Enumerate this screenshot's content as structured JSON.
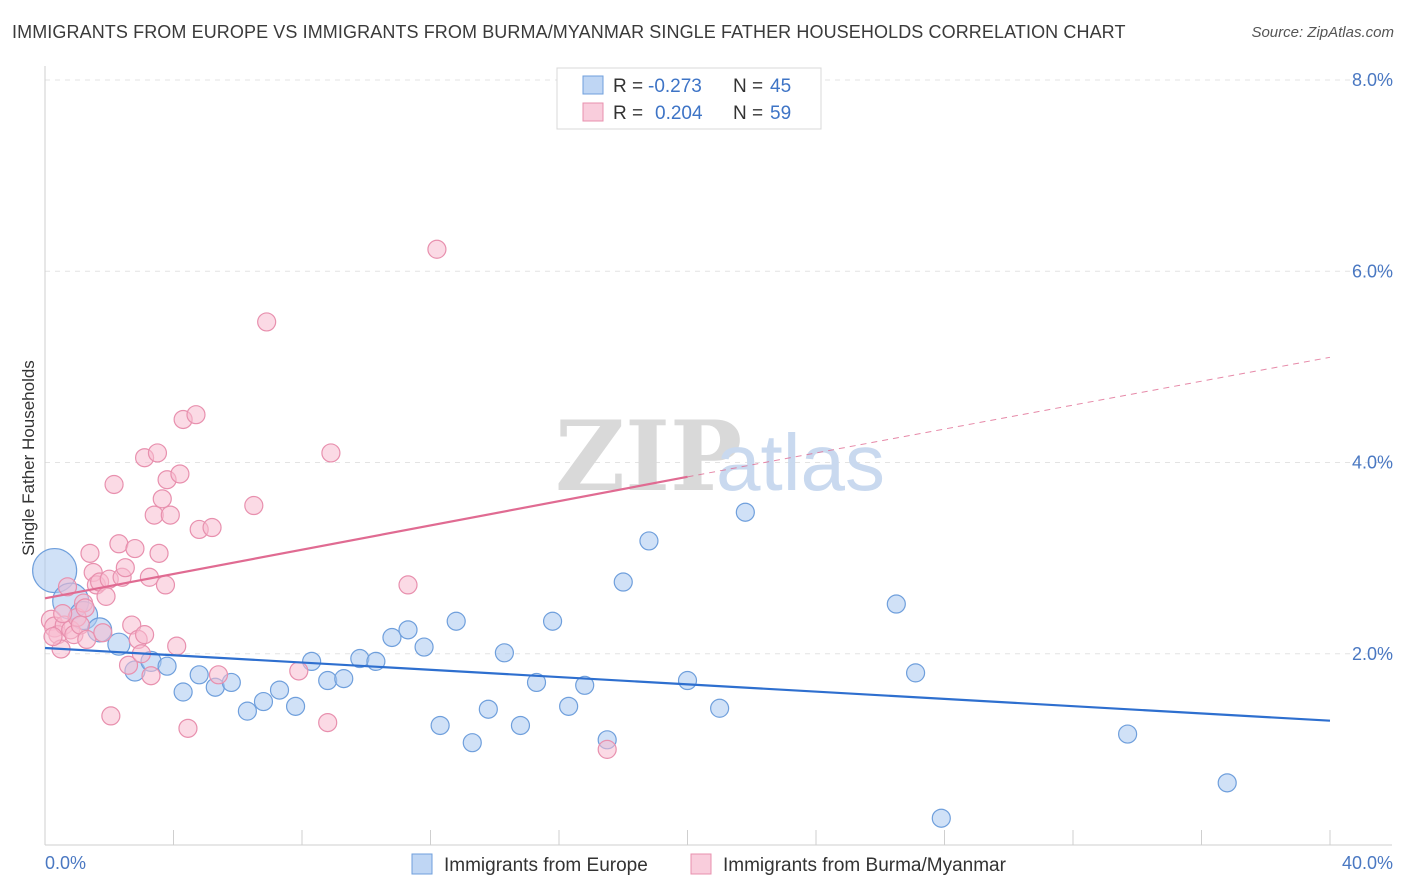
{
  "title": "IMMIGRANTS FROM EUROPE VS IMMIGRANTS FROM BURMA/MYANMAR SINGLE FATHER HOUSEHOLDS CORRELATION CHART",
  "source": "Source: ZipAtlas.com",
  "watermark": {
    "zip": "ZIP",
    "atlas": "atlas"
  },
  "colors": {
    "europe_fill": "#aac8f0",
    "europe_stroke": "#6f9fdc",
    "europe_line": "#2e6fcf",
    "burma_fill": "#f7bcd0",
    "burma_stroke": "#e890ae",
    "burma_line": "#e06b92",
    "tick_label": "#4a78c2",
    "grid": "#e3e3e3"
  },
  "legend": {
    "r_label": "R =",
    "n_label": "N =",
    "rows": [
      {
        "r": "-0.273",
        "n": "45"
      },
      {
        "r": "0.204",
        "n": "59"
      }
    ]
  },
  "chart_data": {
    "type": "scatter",
    "title": "IMMIGRANTS FROM EUROPE VS IMMIGRANTS FROM BURMA/MYANMAR SINGLE FATHER HOUSEHOLDS CORRELATION CHART",
    "xlabel": "",
    "ylabel": "Single Father Households",
    "xlim": [
      0,
      40
    ],
    "ylim": [
      0,
      8
    ],
    "y_ticks": [
      {
        "v": 2,
        "label": "2.0%"
      },
      {
        "v": 4,
        "label": "4.0%"
      },
      {
        "v": 6,
        "label": "6.0%"
      },
      {
        "v": 8,
        "label": "8.0%"
      }
    ],
    "x_tick_labels": [
      {
        "v": 0,
        "label": "0.0%"
      },
      {
        "v": 40,
        "label": "40.0%"
      }
    ],
    "series": [
      {
        "name": "Immigrants from Europe",
        "trend": {
          "x0": 0,
          "y0": 2.06,
          "x1": 40,
          "y1": 1.3
        },
        "points": [
          [
            0.3,
            2.87,
            22
          ],
          [
            0.8,
            2.55,
            18
          ],
          [
            1.2,
            2.4,
            14
          ],
          [
            1.7,
            2.25,
            12
          ],
          [
            2.3,
            2.1,
            11
          ],
          [
            2.8,
            1.82,
            10
          ],
          [
            3.3,
            1.92,
            10
          ],
          [
            3.8,
            1.87,
            9
          ],
          [
            4.3,
            1.6,
            9
          ],
          [
            4.8,
            1.78,
            9
          ],
          [
            5.3,
            1.65,
            9
          ],
          [
            5.8,
            1.7,
            9
          ],
          [
            6.3,
            1.4,
            9
          ],
          [
            6.8,
            1.5,
            9
          ],
          [
            7.3,
            1.62,
            9
          ],
          [
            7.8,
            1.45,
            9
          ],
          [
            8.3,
            1.92,
            9
          ],
          [
            8.8,
            1.72,
            9
          ],
          [
            9.3,
            1.74,
            9
          ],
          [
            9.8,
            1.95,
            9
          ],
          [
            10.3,
            1.92,
            9
          ],
          [
            10.8,
            2.17,
            9
          ],
          [
            11.3,
            2.25,
            9
          ],
          [
            11.8,
            2.07,
            9
          ],
          [
            12.3,
            1.25,
            9
          ],
          [
            12.8,
            2.34,
            9
          ],
          [
            13.3,
            1.07,
            9
          ],
          [
            13.8,
            1.42,
            9
          ],
          [
            14.3,
            2.01,
            9
          ],
          [
            14.8,
            1.25,
            9
          ],
          [
            15.3,
            1.7,
            9
          ],
          [
            15.8,
            2.34,
            9
          ],
          [
            16.3,
            1.45,
            9
          ],
          [
            16.8,
            1.67,
            9
          ],
          [
            17.5,
            1.1,
            9
          ],
          [
            18.0,
            2.75,
            9
          ],
          [
            18.8,
            3.18,
            9
          ],
          [
            20.0,
            1.72,
            9
          ],
          [
            21.0,
            1.43,
            9
          ],
          [
            21.8,
            3.48,
            9
          ],
          [
            26.5,
            2.52,
            9
          ],
          [
            27.1,
            1.8,
            9
          ],
          [
            27.9,
            0.28,
            9
          ],
          [
            33.7,
            1.16,
            9
          ],
          [
            36.8,
            0.65,
            9
          ]
        ]
      },
      {
        "name": "Immigrants from Burma/Myanmar",
        "trend": {
          "x0": 0,
          "y0": 2.58,
          "x1": 20,
          "y1": 3.85,
          "dashed_x1": 40,
          "dashed_y1": 5.1
        },
        "points": [
          [
            0.2,
            2.35,
            10
          ],
          [
            0.3,
            2.28,
            10
          ],
          [
            0.4,
            2.2,
            9
          ],
          [
            0.5,
            2.05,
            9
          ],
          [
            0.6,
            2.3,
            9
          ],
          [
            0.7,
            2.7,
            9
          ],
          [
            0.8,
            2.25,
            9
          ],
          [
            0.9,
            2.2,
            9
          ],
          [
            1.0,
            2.38,
            9
          ],
          [
            1.1,
            2.3,
            9
          ],
          [
            1.2,
            2.53,
            9
          ],
          [
            1.3,
            2.15,
            9
          ],
          [
            1.4,
            3.05,
            9
          ],
          [
            1.5,
            2.85,
            9
          ],
          [
            1.6,
            2.72,
            9
          ],
          [
            1.7,
            2.75,
            9
          ],
          [
            1.8,
            2.22,
            9
          ],
          [
            1.9,
            2.6,
            9
          ],
          [
            2.0,
            2.78,
            9
          ],
          [
            2.05,
            1.35,
            9
          ],
          [
            2.15,
            3.77,
            9
          ],
          [
            2.3,
            3.15,
            9
          ],
          [
            2.4,
            2.8,
            9
          ],
          [
            2.5,
            2.9,
            9
          ],
          [
            2.6,
            1.88,
            9
          ],
          [
            2.7,
            2.3,
            9
          ],
          [
            2.8,
            3.1,
            9
          ],
          [
            2.9,
            2.15,
            9
          ],
          [
            3.0,
            2.0,
            9
          ],
          [
            3.1,
            2.2,
            9
          ],
          [
            3.1,
            4.05,
            9
          ],
          [
            3.25,
            2.8,
            9
          ],
          [
            3.3,
            1.77,
            9
          ],
          [
            3.4,
            3.45,
            9
          ],
          [
            3.5,
            4.1,
            9
          ],
          [
            3.55,
            3.05,
            9
          ],
          [
            3.65,
            3.62,
            9
          ],
          [
            3.75,
            2.72,
            9
          ],
          [
            3.8,
            3.82,
            9
          ],
          [
            3.9,
            3.45,
            9
          ],
          [
            4.1,
            2.08,
            9
          ],
          [
            4.2,
            3.88,
            9
          ],
          [
            4.3,
            4.45,
            9
          ],
          [
            4.45,
            1.22,
            9
          ],
          [
            4.7,
            4.5,
            9
          ],
          [
            4.8,
            3.3,
            9
          ],
          [
            5.2,
            3.32,
            9
          ],
          [
            5.4,
            1.78,
            9
          ],
          [
            6.5,
            3.55,
            9
          ],
          [
            6.9,
            5.47,
            9
          ],
          [
            7.9,
            1.82,
            9
          ],
          [
            8.8,
            1.28,
            9
          ],
          [
            8.9,
            4.1,
            9
          ],
          [
            11.3,
            2.72,
            9
          ],
          [
            12.2,
            6.23,
            9
          ],
          [
            17.5,
            1.0,
            9
          ],
          [
            0.25,
            2.18,
            9
          ],
          [
            1.25,
            2.48,
            9
          ],
          [
            0.55,
            2.42,
            9
          ]
        ]
      }
    ]
  }
}
